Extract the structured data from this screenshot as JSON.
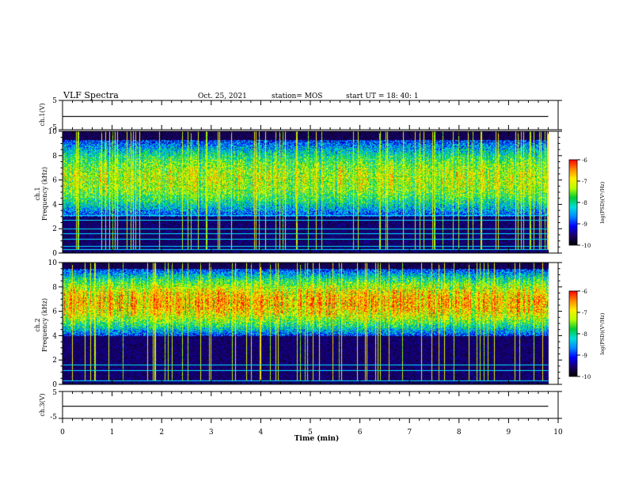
{
  "header": {
    "title": "VLF Spectra",
    "date": "Oct. 25, 2021",
    "station": "station= MOS",
    "start": "start  UT =   18: 40: 1"
  },
  "colors": {
    "colormap": [
      "#000000",
      "#1a0066",
      "#0000ff",
      "#0088ff",
      "#00dddd",
      "#00cc33",
      "#b8ff00",
      "#ffee00",
      "#ff8800",
      "#ff0000",
      "#ffffff"
    ],
    "trace": "#000000",
    "interference_lines": "#00e5ff"
  },
  "chart_data": [
    {
      "id": "ch1-voltage",
      "type": "line",
      "ylabel": "ch.1(V)",
      "ylim": [
        -5,
        5
      ],
      "y_ticks": [
        "5",
        "-5"
      ],
      "x": [
        0,
        9.8
      ],
      "values": [
        -0.5,
        -0.5
      ]
    },
    {
      "id": "ch1-spectrogram",
      "type": "heatmap",
      "ylabel": "ch.1\nFrequency  (kHz)",
      "ylim": [
        0,
        10
      ],
      "y_ticks": [
        "0",
        "2",
        "4",
        "6",
        "8",
        "10"
      ],
      "colorbar": {
        "label": "log(PSD)(V²/Hz)",
        "range": [
          -10,
          -6
        ],
        "ticks": [
          "-6",
          "-7",
          "-8",
          "-9",
          "-10"
        ]
      },
      "band_khz": [
        3.0,
        9.3
      ],
      "interference_lines_khz": [
        0.3,
        0.6,
        1.2,
        1.6,
        2.0,
        2.7,
        3.1
      ]
    },
    {
      "id": "ch2-spectrogram",
      "type": "heatmap",
      "ylabel": "ch.2\nFrequency  (kHz)",
      "ylim": [
        0,
        10
      ],
      "y_ticks": [
        "0",
        "2",
        "4",
        "6",
        "8",
        "10"
      ],
      "colorbar": {
        "label": "log(PSD)(V²/Hz)",
        "range": [
          -10,
          -6
        ],
        "ticks": [
          "-6",
          "-7",
          "-8",
          "-9",
          "-10"
        ]
      },
      "band_khz": [
        4.0,
        9.5
      ],
      "interference_lines_khz": [
        0.3,
        1.2,
        1.6
      ]
    },
    {
      "id": "ch3-voltage",
      "type": "line",
      "ylabel": "ch.3(V)",
      "ylim": [
        -5,
        5
      ],
      "y_ticks": [
        "5",
        "-5"
      ],
      "x": [
        0,
        9.8
      ],
      "values": [
        -0.5,
        -0.5
      ]
    }
  ],
  "x_axis": {
    "label": "Time  (min)",
    "xlim": [
      0,
      10
    ],
    "ticks": [
      "0",
      "1",
      "2",
      "3",
      "4",
      "5",
      "6",
      "7",
      "8",
      "9",
      "10"
    ]
  }
}
